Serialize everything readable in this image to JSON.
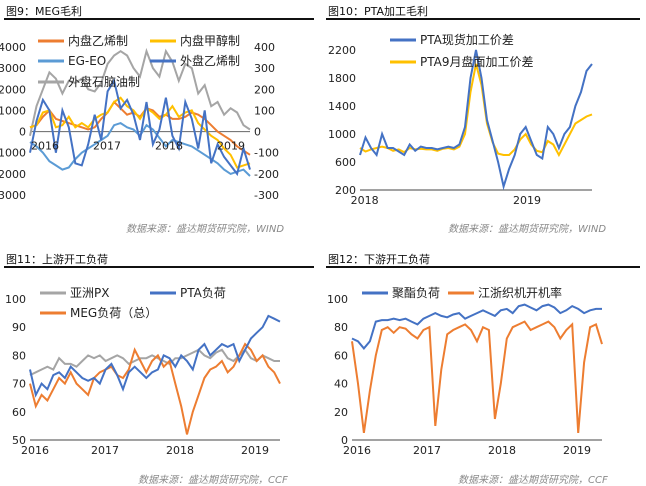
{
  "colors": {
    "orange": "#ED7D31",
    "gray": "#A5A5A5",
    "yellow": "#FFC000",
    "blue": "#4472C4",
    "lightblue": "#5B9BD5"
  },
  "chart_data": [
    {
      "type": "line",
      "title": "图9：MEG毛利",
      "source": "数据来源：盛达期货研究院，WIND",
      "x_ticks": [
        "2016",
        "2017",
        "2018",
        "2019"
      ],
      "ylim_left": [
        -3000,
        4000
      ],
      "y_ticks_left": [
        "-3000",
        "-2000",
        "-1000",
        "0",
        "1000",
        "2000",
        "3000",
        "4000"
      ],
      "ylim_right": [
        -300,
        400
      ],
      "y_ticks_right": [
        "-300",
        "-200",
        "-100",
        "0",
        "100",
        "200",
        "300",
        "400"
      ],
      "legend": [
        "内盘乙烯制",
        "内盘甲醇制",
        "EG-EO",
        "外盘乙烯制",
        "外盘石脑油制"
      ],
      "series": [
        {
          "name": "内盘乙烯制",
          "color": "orange",
          "axis": "left",
          "values": [
            200,
            300,
            700,
            1000,
            600,
            500,
            400,
            300,
            200,
            100,
            200,
            600,
            900,
            1400,
            1100,
            800,
            900,
            700,
            1100,
            1000,
            700,
            800,
            600,
            600,
            700,
            900,
            800,
            600,
            300,
            0,
            -200,
            -400,
            -700,
            -900,
            -1100
          ]
        },
        {
          "name": "内盘甲醇制",
          "color": "yellow",
          "axis": "right",
          "values": [
            20,
            30,
            90,
            100,
            20,
            30,
            70,
            20,
            40,
            20,
            60,
            80,
            90,
            140,
            160,
            120,
            100,
            60,
            110,
            90,
            60,
            80,
            120,
            70,
            90,
            100,
            40,
            10,
            -20,
            -40,
            -80,
            -110,
            -170,
            -160,
            -150
          ]
        },
        {
          "name": "EG-EO",
          "color": "lightblue",
          "axis": "left",
          "values": [
            -500,
            -700,
            -1000,
            -1400,
            -1600,
            -1800,
            -1700,
            -1300,
            -1000,
            -800,
            -600,
            -400,
            -200,
            300,
            400,
            200,
            100,
            -200,
            300,
            100,
            -300,
            -700,
            -400,
            -500,
            -600,
            -700,
            -900,
            -1100,
            -1300,
            -1500,
            -1800,
            -2000,
            -1900,
            -1800,
            -2100
          ]
        },
        {
          "name": "外盘乙烯制",
          "color": "blue",
          "axis": "right",
          "values": [
            -100,
            50,
            150,
            100,
            -100,
            100,
            20,
            -150,
            -160,
            -60,
            80,
            -40,
            190,
            240,
            110,
            150,
            80,
            -40,
            140,
            -60,
            10,
            160,
            -20,
            -80,
            140,
            60,
            -80,
            100,
            -150,
            -60,
            -120,
            -160,
            -200,
            -80,
            -180
          ]
        },
        {
          "name": "外盘石脑油制",
          "color": "gray",
          "axis": "right",
          "values": [
            -20,
            120,
            200,
            280,
            250,
            180,
            240,
            230,
            250,
            200,
            190,
            230,
            320,
            360,
            380,
            360,
            300,
            260,
            380,
            300,
            260,
            380,
            330,
            240,
            320,
            300,
            180,
            220,
            120,
            140,
            80,
            110,
            90,
            30,
            10
          ]
        }
      ]
    },
    {
      "type": "line",
      "title": "图10：PTA加工毛利",
      "x_ticks": [
        "2018",
        "2019"
      ],
      "ylim": [
        200,
        2200
      ],
      "y_ticks": [
        "200",
        "600",
        "1000",
        "1400",
        "1800",
        "2200"
      ],
      "legend": [
        "PTA现货加工价差",
        "PTA9月盘面加工价差"
      ],
      "series": [
        {
          "name": "PTA现货加工价差",
          "color": "blue",
          "values": [
            700,
            950,
            800,
            700,
            1000,
            800,
            800,
            750,
            700,
            850,
            760,
            820,
            800,
            800,
            780,
            800,
            820,
            800,
            850,
            1100,
            1800,
            2200,
            1800,
            1200,
            900,
            600,
            250,
            500,
            700,
            1000,
            1100,
            900,
            700,
            650,
            1100,
            1000,
            800,
            1000,
            1100,
            1400,
            1600,
            1900,
            2000
          ]
        },
        {
          "name": "PTA9月盘面加工价差",
          "color": "yellow",
          "values": [
            800,
            750,
            780,
            800,
            820,
            800,
            760,
            780,
            740,
            800,
            780,
            790,
            780,
            780,
            760,
            790,
            800,
            780,
            820,
            1000,
            1600,
            2000,
            1700,
            1150,
            880,
            720,
            700,
            700,
            780,
            920,
            1000,
            850,
            760,
            740,
            900,
            850,
            700,
            850,
            1000,
            1150,
            1200,
            1250,
            1280
          ]
        }
      ]
    },
    {
      "type": "line",
      "title": "图11：上游开工负荷",
      "x_ticks": [
        "2016",
        "2017",
        "2018",
        "2019"
      ],
      "ylim": [
        50,
        100
      ],
      "y_ticks": [
        "50",
        "60",
        "70",
        "80",
        "90",
        "100"
      ],
      "legend": [
        "亚洲PX",
        "PTA负荷",
        "MEG负荷（总）"
      ],
      "series": [
        {
          "name": "亚洲PX",
          "color": "gray",
          "values": [
            73,
            74,
            75,
            76,
            75,
            79,
            77,
            77,
            76,
            78,
            80,
            79,
            80,
            78,
            79,
            80,
            79,
            77,
            78,
            79,
            79,
            80,
            79,
            78,
            77,
            79,
            79,
            80,
            81,
            82,
            80,
            79,
            81,
            82,
            79,
            78,
            80,
            82,
            79,
            78,
            80,
            79,
            78,
            78
          ]
        },
        {
          "name": "PTA负荷",
          "color": "blue",
          "values": [
            75,
            66,
            70,
            68,
            73,
            74,
            72,
            76,
            74,
            72,
            71,
            72,
            70,
            75,
            77,
            73,
            68,
            74,
            76,
            74,
            72,
            74,
            75,
            80,
            79,
            76,
            80,
            78,
            75,
            82,
            84,
            80,
            82,
            84,
            83,
            84,
            78,
            82,
            86,
            88,
            90,
            94,
            93,
            92
          ]
        },
        {
          "name": "MEG负荷（总）",
          "color": "orange",
          "values": [
            70,
            62,
            66,
            64,
            68,
            72,
            70,
            74,
            70,
            68,
            66,
            72,
            74,
            75,
            76,
            73,
            72,
            75,
            82,
            78,
            74,
            78,
            80,
            76,
            78,
            70,
            62,
            52,
            60,
            66,
            72,
            75,
            76,
            78,
            74,
            76,
            80,
            84,
            82,
            78,
            80,
            76,
            74,
            70
          ]
        }
      ]
    },
    {
      "type": "line",
      "title": "图12：下游开工负荷",
      "source": "数据来源：盛达期货研究院，CCF",
      "x_ticks": [
        "2016",
        "2017",
        "2018",
        "2019"
      ],
      "ylim": [
        0,
        100
      ],
      "y_ticks": [
        "0",
        "20",
        "40",
        "60",
        "80",
        "100"
      ],
      "legend": [
        "聚酯负荷",
        "江浙织机开机率"
      ],
      "series": [
        {
          "name": "聚酯负荷",
          "color": "blue",
          "values": [
            72,
            70,
            65,
            70,
            84,
            85,
            85,
            86,
            85,
            86,
            84,
            82,
            86,
            88,
            90,
            88,
            87,
            89,
            90,
            86,
            88,
            90,
            92,
            90,
            88,
            92,
            93,
            90,
            95,
            96,
            94,
            92,
            95,
            96,
            94,
            90,
            92,
            95,
            93,
            90,
            92,
            93,
            93
          ]
        },
        {
          "name": "江浙织机开机率",
          "color": "orange",
          "values": [
            70,
            40,
            5,
            35,
            60,
            78,
            80,
            76,
            80,
            79,
            75,
            72,
            78,
            80,
            10,
            50,
            75,
            78,
            80,
            82,
            78,
            70,
            80,
            78,
            15,
            40,
            72,
            80,
            82,
            84,
            78,
            80,
            82,
            84,
            80,
            72,
            78,
            82,
            5,
            55,
            80,
            82,
            68
          ]
        }
      ]
    }
  ],
  "sources": {
    "top_left": "数据来源：盛达期货研究院，WIND",
    "top_right": "数据来源：盛达期货研究院，WIND",
    "bottom_left": "数据来源：盛达期货研究院，CCF",
    "bottom_right": "数据来源：盛达期货研究院，CCF"
  }
}
